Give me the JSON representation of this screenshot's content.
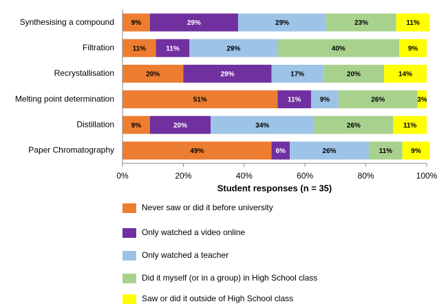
{
  "chart_data": {
    "type": "stacked_barh",
    "x_label": "Student responses (n = 35)",
    "categories": [
      "Synthesising a compound",
      "Filtration",
      "Recrystallisation",
      "Melting point determination",
      "Distillation",
      "Paper Chromatography"
    ],
    "xlim": [
      0,
      100
    ],
    "xticks": [
      {
        "value": 0,
        "label": "0%"
      },
      {
        "value": 20,
        "label": "20%"
      },
      {
        "value": 40,
        "label": "40%"
      },
      {
        "value": 60,
        "label": "60%"
      },
      {
        "value": 80,
        "label": "80%"
      },
      {
        "value": 100,
        "label": "100%"
      }
    ],
    "grid": false,
    "legend": "bottom",
    "series": [
      {
        "name": "Never saw or did it before university",
        "color": "#ED7D31",
        "label_color": "#000000",
        "values": [
          9,
          11,
          20,
          51,
          9,
          49
        ],
        "value_labels": [
          "9%",
          "11%",
          "20%",
          "51%",
          "9%",
          "49%"
        ]
      },
      {
        "name": "Only watched a video online",
        "color": "#7030A0",
        "label_color": "#ffffff",
        "values": [
          29,
          11,
          29,
          11,
          20,
          6
        ],
        "value_labels": [
          "29%",
          "11%",
          "29%",
          "11%",
          "20%",
          "6%"
        ]
      },
      {
        "name": "Only watched a teacher",
        "color": "#9DC3E6",
        "label_color": "#000000",
        "values": [
          29,
          29,
          17,
          9,
          34,
          26
        ],
        "value_labels": [
          "29%",
          "29%",
          "17%",
          "9%",
          "34%",
          "26%"
        ]
      },
      {
        "name": "Did it myself (or in a group) in High School class",
        "color": "#A9D18E",
        "label_color": "#000000",
        "values": [
          23,
          40,
          20,
          26,
          26,
          11
        ],
        "value_labels": [
          "23%",
          "40%",
          "20%",
          "26%",
          "26%",
          "11%"
        ]
      },
      {
        "name": "Saw or did it outside of High School class",
        "color": "#FFFF00",
        "label_color": "#000000",
        "values": [
          11,
          9,
          14,
          3,
          11,
          9
        ],
        "value_labels": [
          "11%",
          "9%",
          "14%",
          "3%",
          "11%",
          "9%"
        ]
      }
    ]
  }
}
